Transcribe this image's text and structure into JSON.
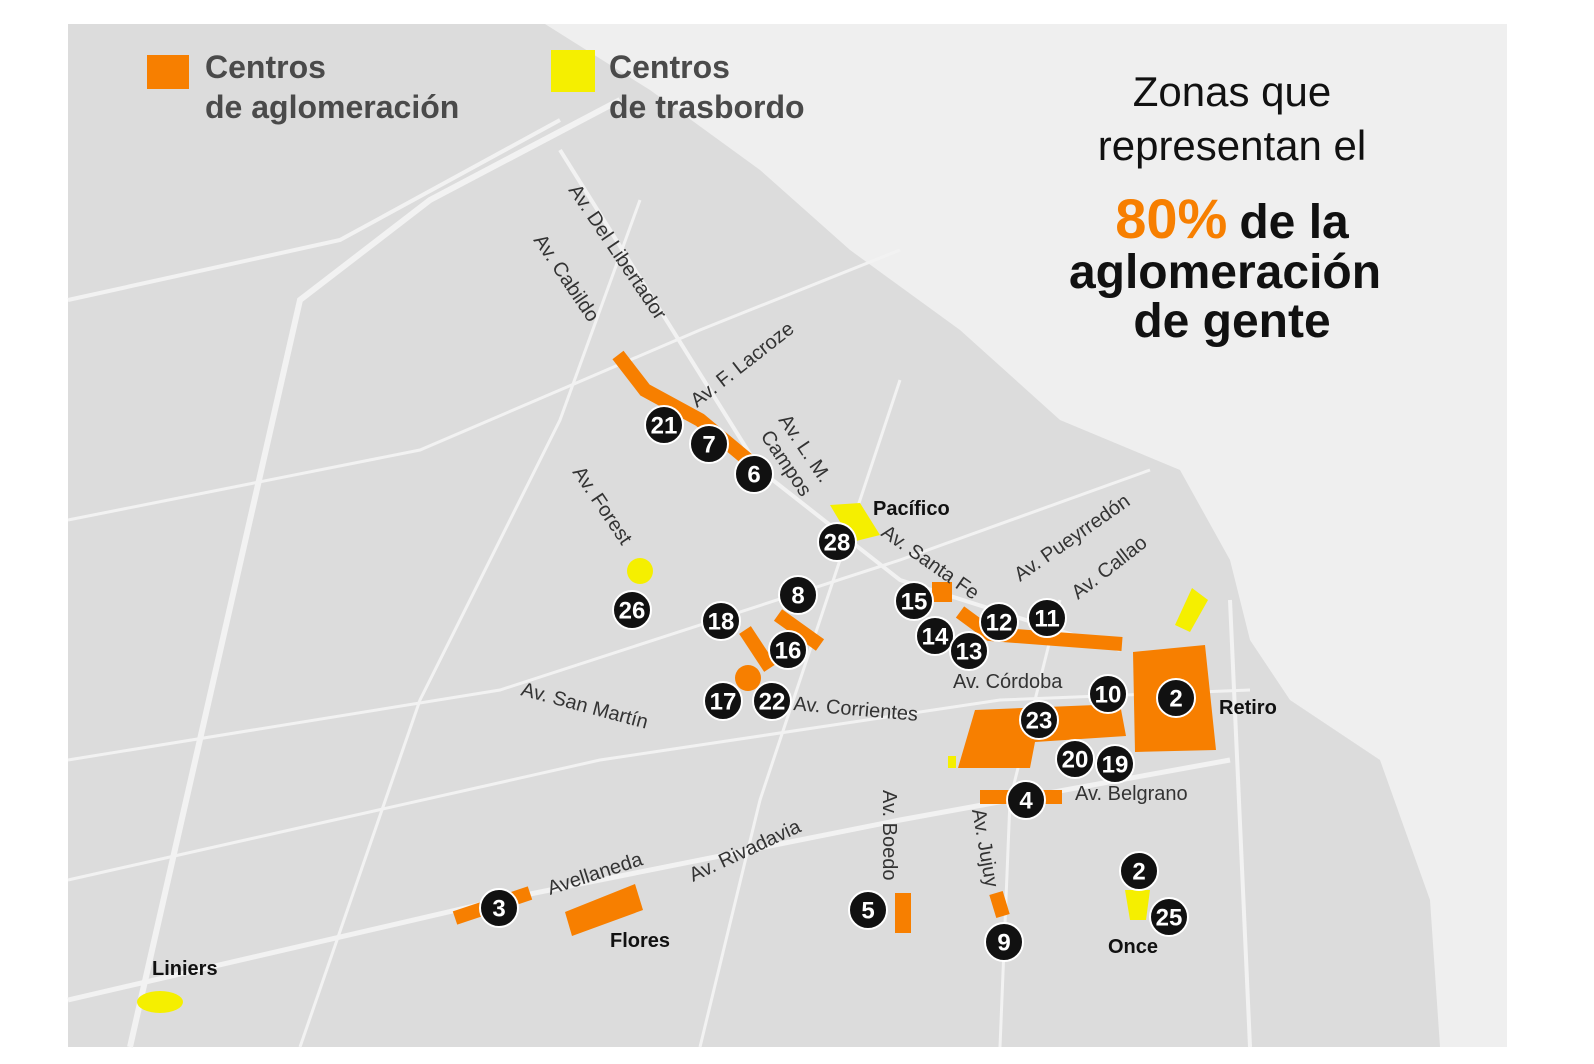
{
  "legend": [
    {
      "lines": [
        "Centros",
        "de aglomeración"
      ]
    },
    {
      "lines": [
        "Centros",
        "de trasbordo"
      ]
    }
  ],
  "headline": {
    "lines": [
      "Zonas que",
      "representan el"
    ],
    "highlight": "80%",
    "rest": [
      "de la",
      "aglomeración",
      "de gente"
    ]
  },
  "streets": [
    "Av. Del Libertador",
    "Av. Cabildo",
    "Av. F. Lacroze",
    "Av. L. M.",
    "Campos",
    "Av. Forest",
    "Av. Santa Fe",
    "Av. Pueyrredón",
    "Av. Callao",
    "Av. Córdoba",
    "Av. San Martín",
    "Av. Corrientes",
    "Av. Belgrano",
    "Av. Boedo",
    "Av. Jujuy",
    "Av. Rivadavia",
    "Avellaneda"
  ],
  "markers": [
    21,
    7,
    6,
    28,
    26,
    8,
    18,
    16,
    17,
    22,
    15,
    14,
    13,
    12,
    11,
    10,
    2,
    23,
    20,
    19,
    4,
    3,
    5,
    9,
    2,
    25
  ],
  "places": [
    "Pacífico",
    "Retiro",
    "Flores",
    "Once",
    "Liniers"
  ]
}
